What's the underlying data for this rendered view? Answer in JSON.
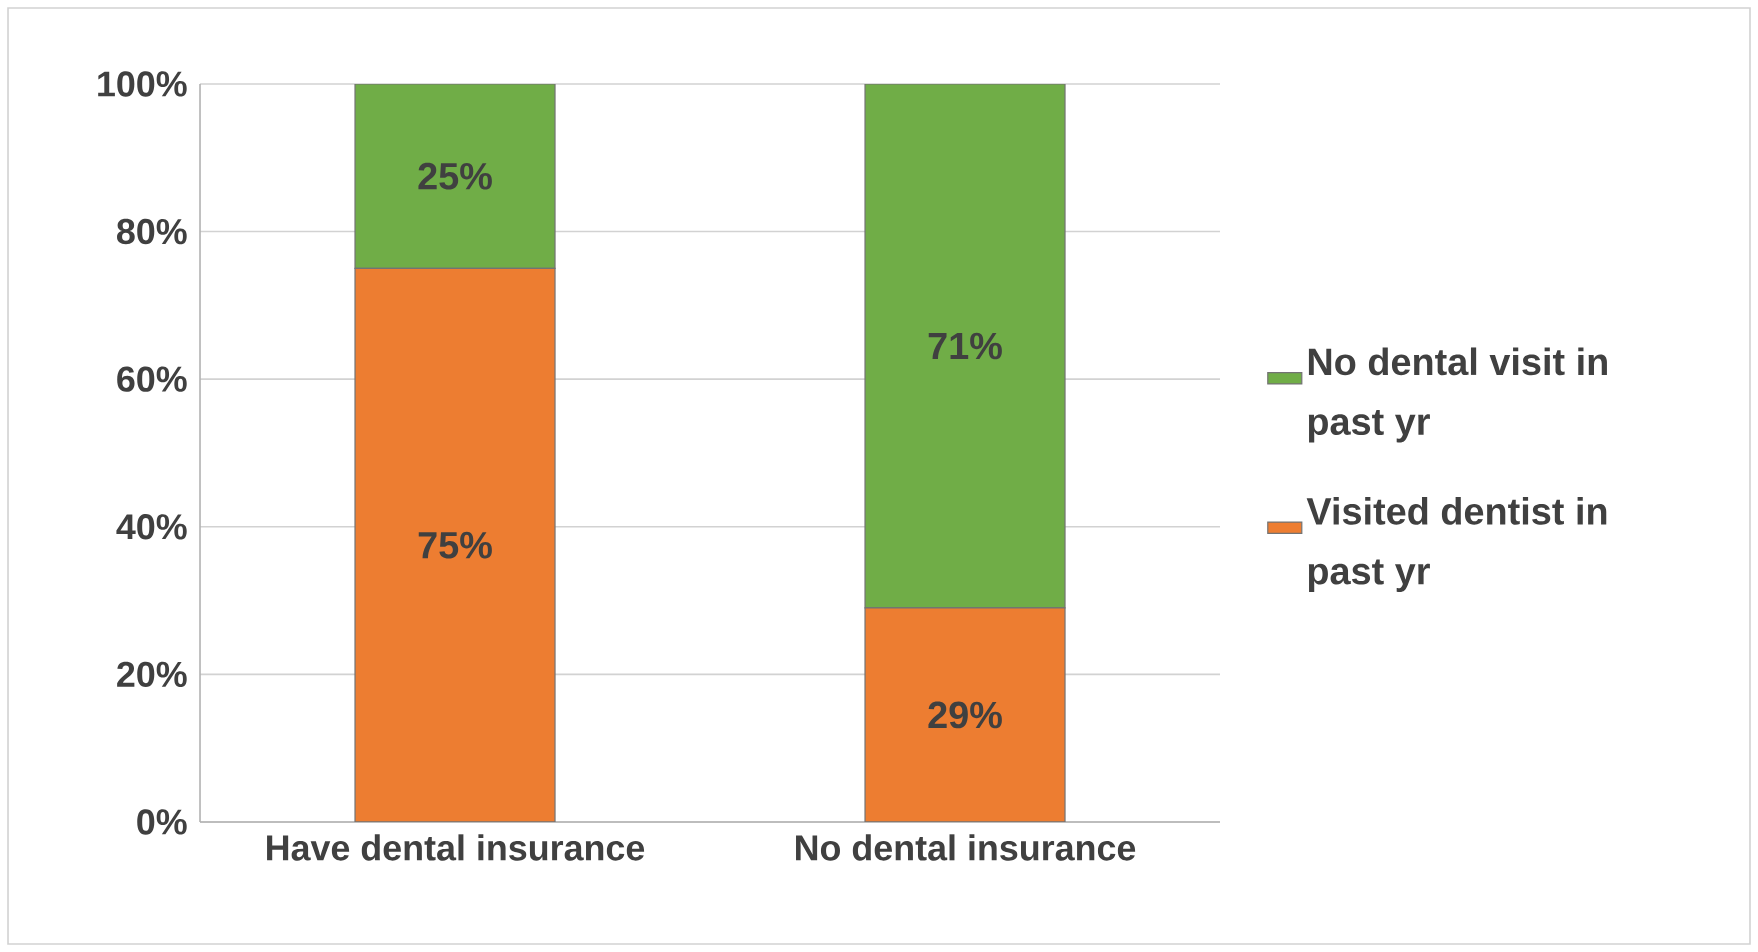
{
  "chart_data": {
    "type": "bar",
    "stacked": true,
    "categories": [
      "Have dental insurance",
      "No dental insurance"
    ],
    "series": [
      {
        "name": "Visited dentist in past yr",
        "color": "#ed7d31",
        "values": [
          75,
          29
        ],
        "value_labels": [
          "75%",
          "29%"
        ]
      },
      {
        "name": "No dental visit in past yr",
        "color": "#70ad47",
        "values": [
          25,
          71
        ],
        "value_labels": [
          "25%",
          "71%"
        ]
      }
    ],
    "ylim": [
      0,
      100
    ],
    "yticks": [
      {
        "value": 0,
        "label": "0%"
      },
      {
        "value": 20,
        "label": "20%"
      },
      {
        "value": 40,
        "label": "40%"
      },
      {
        "value": 60,
        "label": "60%"
      },
      {
        "value": 80,
        "label": "80%"
      },
      {
        "value": 100,
        "label": "100%"
      }
    ],
    "grid": "y",
    "legend": "right"
  }
}
